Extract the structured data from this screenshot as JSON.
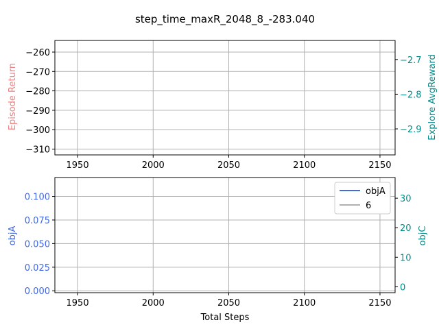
{
  "title": "step_time_maxR_2048_8_-283.040",
  "colors": {
    "return": "#f08080",
    "avgreward": "#008b8b",
    "objA": "#4169e1",
    "objC": "#008b8b",
    "grid": "#b0b0b0",
    "axis": "#000000"
  },
  "chart_data": [
    {
      "type": "line",
      "xlabel": "",
      "ylabel_left": "Episode Return",
      "ylabel_right": "Explore AvgReward",
      "xlim": [
        1935,
        2160
      ],
      "ylim_left": [
        -313,
        -254
      ],
      "ylim_right": [
        -2.975,
        -2.645
      ],
      "x_ticks": [
        1950,
        2000,
        2050,
        2100,
        2150
      ],
      "y_ticks_left": [
        -260,
        -270,
        -280,
        -290,
        -300,
        -310
      ],
      "y_ticks_right": [
        -2.7,
        -2.8,
        -2.9
      ],
      "grid": true,
      "series": []
    },
    {
      "type": "line",
      "xlabel": "Total Steps",
      "ylabel_left": "objA",
      "ylabel_right": "objC",
      "xlim": [
        1935,
        2160
      ],
      "ylim_left": [
        -0.002,
        0.12
      ],
      "ylim_right": [
        -2,
        37
      ],
      "x_ticks": [
        1950,
        2000,
        2050,
        2100,
        2150
      ],
      "y_ticks_left": [
        "0.100",
        "0.075",
        "0.050",
        "0.025",
        "0.000"
      ],
      "y_ticks_right": [
        30,
        20,
        10,
        0
      ],
      "grid": true,
      "legend": {
        "position": "top-right",
        "entries": [
          {
            "label": "objA",
            "color": "#4169e1"
          },
          {
            "label": "6",
            "color": "#b0b0b0"
          }
        ]
      },
      "series": []
    }
  ]
}
